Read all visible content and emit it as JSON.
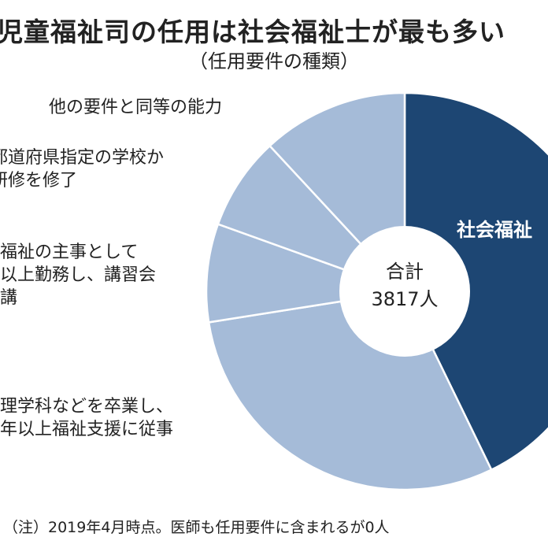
{
  "title": "児童福祉司の任用は社会福祉士が最も多い",
  "subtitle": "（任用要件の種類）",
  "note": "（注）2019年4月時点。医師も任用要件に含まれるが0人",
  "chart_data": {
    "type": "pie",
    "title": "児童福祉司の任用は社会福祉士が最も多い",
    "subtitle": "（任用要件の種類）",
    "donut": true,
    "center_label": {
      "line1": "合計",
      "line2": "3817人"
    },
    "slices": [
      {
        "label": "社会福祉",
        "value": 42.8,
        "color": "#1d4673"
      },
      {
        "label": "理学科などを卒業し、\n年以上福祉支援に従事",
        "value": 29.7,
        "color": "#a5bbd8"
      },
      {
        "label": "福祉の主事として\n以上勤務し、講習会\n講",
        "value": 8.0,
        "color": "#a5bbd8"
      },
      {
        "label": "都道府県指定の学校か\n研修を修了",
        "value": 7.6,
        "color": "#a5bbd8"
      },
      {
        "label": "他の要件と同等の能力",
        "value": 11.9,
        "color": "#a5bbd8"
      }
    ],
    "unit": "percent (estimated)"
  }
}
